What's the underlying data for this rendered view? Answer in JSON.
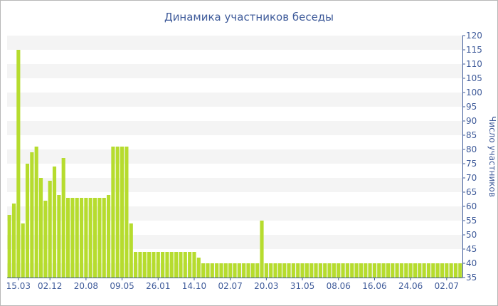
{
  "colors": {
    "bar": "#b6dc2e",
    "text": "#3f5b9a",
    "band": "#f4f4f4",
    "axis": "#3f5b9a"
  },
  "chart_data": {
    "type": "bar",
    "title": "Динамика участников беседы",
    "xlabel": "",
    "ylabel": "Число участников",
    "ylim": [
      35,
      120
    ],
    "y_ticks": [
      35,
      40,
      45,
      50,
      55,
      60,
      65,
      70,
      75,
      80,
      85,
      90,
      95,
      100,
      105,
      110,
      115,
      120
    ],
    "x_ticks": [
      {
        "label": "15.03",
        "index": 2
      },
      {
        "label": "02.12",
        "index": 9
      },
      {
        "label": "20.08",
        "index": 17
      },
      {
        "label": "09.05",
        "index": 25
      },
      {
        "label": "26.01",
        "index": 33
      },
      {
        "label": "14.10",
        "index": 41
      },
      {
        "label": "02.07",
        "index": 49
      },
      {
        "label": "20.03",
        "index": 57
      },
      {
        "label": "31.05",
        "index": 65
      },
      {
        "label": "08.06",
        "index": 73
      },
      {
        "label": "16.06",
        "index": 81
      },
      {
        "label": "24.06",
        "index": 89
      },
      {
        "label": "02.07",
        "index": 97
      }
    ],
    "grid": true,
    "legend": "none",
    "values": [
      57,
      61,
      115,
      54,
      75,
      79,
      81,
      70,
      62,
      69,
      74,
      64,
      77,
      63,
      63,
      63,
      63,
      63,
      63,
      63,
      63,
      63,
      64,
      81,
      81,
      81,
      81,
      54,
      44,
      44,
      44,
      44,
      44,
      44,
      44,
      44,
      44,
      44,
      44,
      44,
      44,
      44,
      42,
      40,
      40,
      40,
      40,
      40,
      40,
      40,
      40,
      40,
      40,
      40,
      40,
      40,
      55,
      40,
      40,
      40,
      40,
      40,
      40,
      40,
      40,
      40,
      40,
      40,
      40,
      40,
      40,
      40,
      40,
      40,
      40,
      40,
      40,
      40,
      40,
      40,
      40,
      40,
      40,
      40,
      40,
      40,
      40,
      40,
      40,
      40,
      40,
      40,
      40,
      40,
      40,
      40,
      40,
      40,
      40,
      40,
      40
    ]
  }
}
